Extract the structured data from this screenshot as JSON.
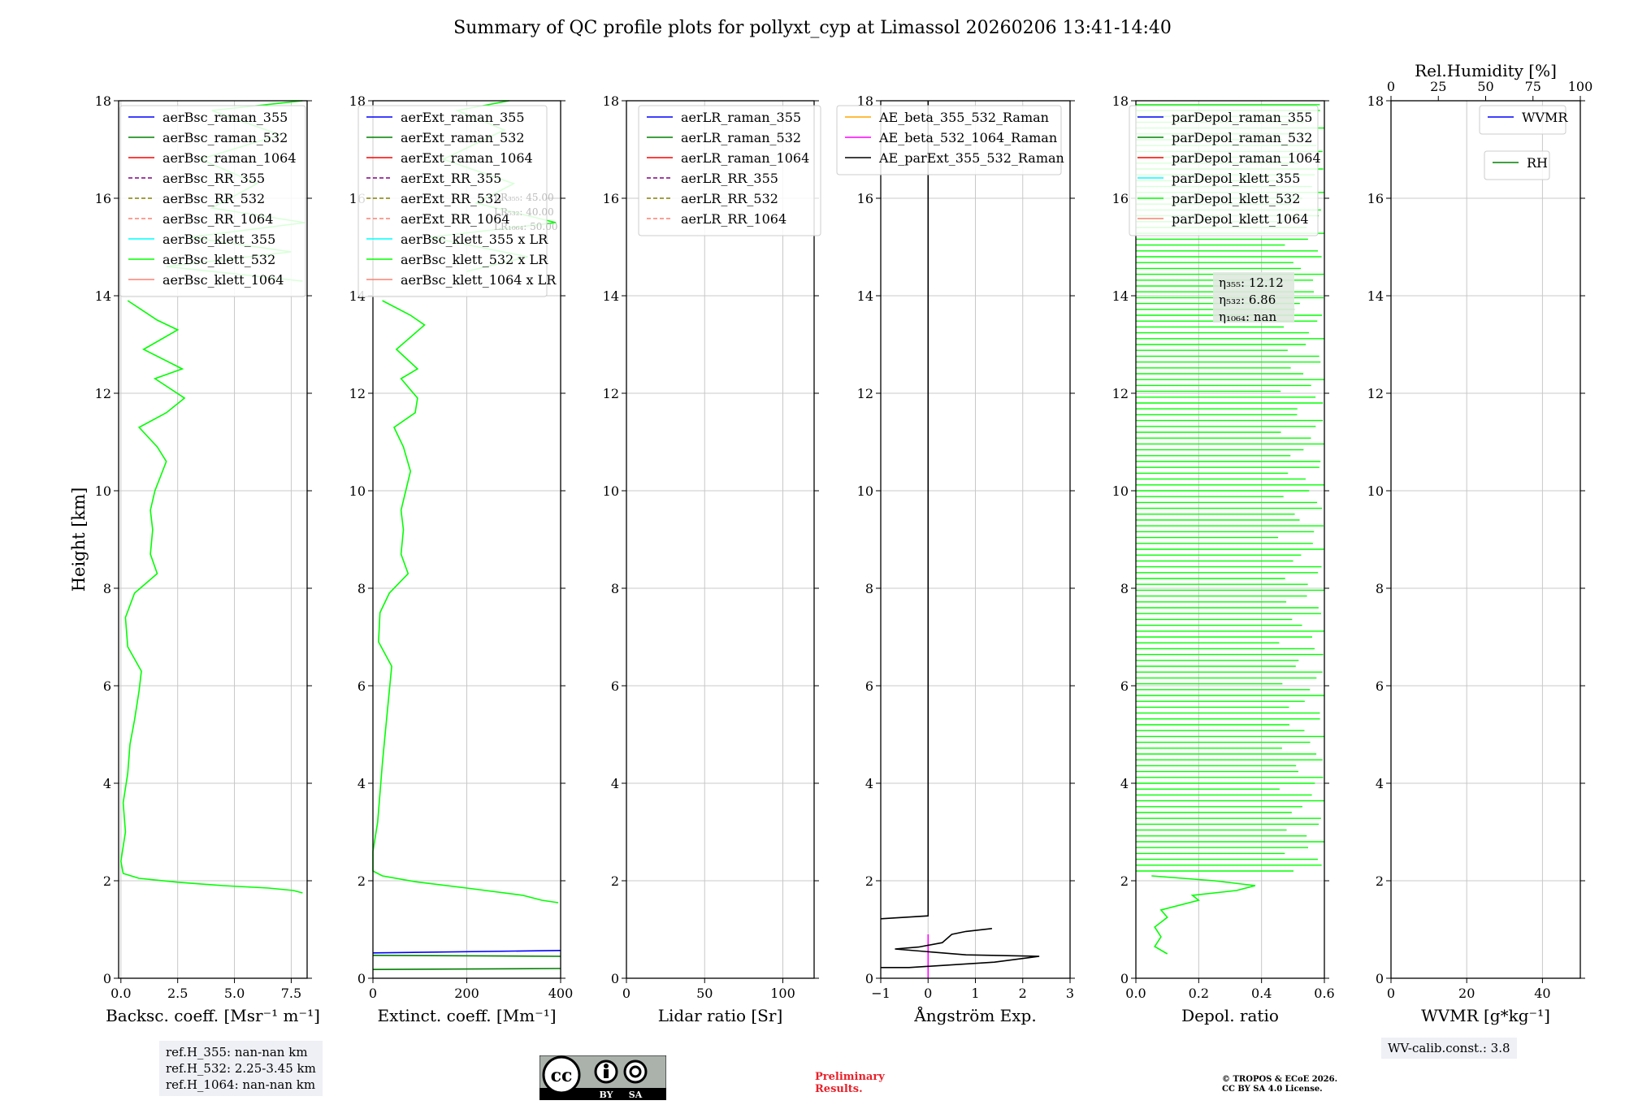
{
  "title": "Summary of QC profile plots for pollyxt_cyp at Limassol 20260206 13:41-14:40",
  "y_label": "Height [km]",
  "y_ticks": [
    "0",
    "2",
    "4",
    "6",
    "8",
    "10",
    "12",
    "14",
    "16",
    "18"
  ],
  "colors": {
    "raman355": "#0000ff",
    "raman532": "#008000",
    "raman1064": "#ff0000",
    "rr355": "#800080",
    "rr532": "#808000",
    "rr1064": "#fa8072",
    "klett355": "#00ffff",
    "klett532": "#00ff00",
    "klett1064": "#fa8072",
    "ae1": "#ffa500",
    "ae2": "#ff00ff",
    "ae3": "#000000"
  },
  "chart_data": [
    {
      "type": "line",
      "id": "bsc",
      "xlabel": "Backsc. coeff. [Msr⁻¹ m⁻¹]",
      "xlim": [
        -0.1,
        8.2
      ],
      "ylim": [
        0,
        18
      ],
      "x_ticks": [
        {
          "v": 0,
          "t": "0.0"
        },
        {
          "v": 2.5,
          "t": "2.5"
        },
        {
          "v": 5,
          "t": "5.0"
        },
        {
          "v": 7.5,
          "t": "7.5"
        }
      ],
      "legend": [
        {
          "label": "aerBsc_raman_355",
          "color": "raman355",
          "dash": false
        },
        {
          "label": "aerBsc_raman_532",
          "color": "raman532",
          "dash": false
        },
        {
          "label": "aerBsc_raman_1064",
          "color": "raman1064",
          "dash": false
        },
        {
          "label": "aerBsc_RR_355",
          "color": "rr355",
          "dash": true
        },
        {
          "label": "aerBsc_RR_532",
          "color": "rr532",
          "dash": true
        },
        {
          "label": "aerBsc_RR_1064",
          "color": "rr1064",
          "dash": true
        },
        {
          "label": "aerBsc_klett_355",
          "color": "klett355",
          "dash": false
        },
        {
          "label": "aerBsc_klett_532",
          "color": "klett532",
          "dash": false
        },
        {
          "label": "aerBsc_klett_1064",
          "color": "klett1064",
          "dash": false
        }
      ],
      "series": [
        {
          "name": "aerBsc_klett_532",
          "color": "klett532",
          "points": [
            [
              8.0,
              1.75
            ],
            [
              7.6,
              1.8
            ],
            [
              6.5,
              1.85
            ],
            [
              4.5,
              1.9
            ],
            [
              2.5,
              1.97
            ],
            [
              0.8,
              2.05
            ],
            [
              0.1,
              2.15
            ],
            [
              0.0,
              2.4
            ],
            [
              0.2,
              3.0
            ],
            [
              0.1,
              3.6
            ],
            [
              0.3,
              4.2
            ],
            [
              0.4,
              4.8
            ],
            [
              0.6,
              5.3
            ],
            [
              0.8,
              5.9
            ],
            [
              0.9,
              6.3
            ],
            [
              0.3,
              6.8
            ],
            [
              0.2,
              7.4
            ],
            [
              0.6,
              7.9
            ],
            [
              1.6,
              8.3
            ],
            [
              1.3,
              8.7
            ],
            [
              1.4,
              9.2
            ],
            [
              1.3,
              9.6
            ],
            [
              1.5,
              10.0
            ],
            [
              2.0,
              10.6
            ],
            [
              1.6,
              10.9
            ],
            [
              0.8,
              11.3
            ],
            [
              2.0,
              11.6
            ],
            [
              2.8,
              11.9
            ],
            [
              1.5,
              12.3
            ],
            [
              2.7,
              12.5
            ],
            [
              1.0,
              12.9
            ],
            [
              2.5,
              13.3
            ],
            [
              1.6,
              13.5
            ],
            [
              0.3,
              13.9
            ]
          ]
        },
        {
          "name": "aerBsc_klett_532_upper",
          "color": "klett532",
          "points": [
            [
              8.0,
              14.3
            ],
            [
              2.0,
              14.6
            ],
            [
              7.5,
              14.9
            ],
            [
              3.0,
              15.2
            ],
            [
              8.1,
              15.5
            ],
            [
              4.0,
              15.8
            ],
            [
              6.0,
              16.3
            ],
            [
              3.5,
              16.8
            ],
            [
              7.0,
              17.3
            ],
            [
              4.0,
              17.8
            ],
            [
              8.0,
              18.0
            ]
          ]
        }
      ]
    },
    {
      "type": "line",
      "id": "ext",
      "xlabel": "Extinct. coeff. [Mm⁻¹]",
      "xlim": [
        0,
        400
      ],
      "ylim": [
        0,
        18
      ],
      "x_ticks": [
        {
          "v": 0,
          "t": "0"
        },
        {
          "v": 200,
          "t": "200"
        },
        {
          "v": 400,
          "t": "400"
        }
      ],
      "legend": [
        {
          "label": "aerExt_raman_355",
          "color": "raman355",
          "dash": false
        },
        {
          "label": "aerExt_raman_532",
          "color": "raman532",
          "dash": false
        },
        {
          "label": "aerExt_raman_1064",
          "color": "raman1064",
          "dash": false
        },
        {
          "label": "aerExt_RR_355",
          "color": "rr355",
          "dash": true
        },
        {
          "label": "aerExt_RR_532",
          "color": "rr532",
          "dash": true
        },
        {
          "label": "aerExt_RR_1064",
          "color": "rr1064",
          "dash": true
        },
        {
          "label": "aerBsc_klett_355 x LR",
          "color": "klett355",
          "dash": false
        },
        {
          "label": "aerBsc_klett_532 x LR",
          "color": "klett532",
          "dash": false
        },
        {
          "label": "aerBsc_klett_1064 x LR",
          "color": "klett1064",
          "dash": false
        }
      ],
      "lr_notes": [
        "LR₃₅₅: 45.00",
        "LR₅₃₂: 40.00",
        "LR₁₀₆₄: 50.00"
      ],
      "series": [
        {
          "name": "aerBsc_klett_532 x LR",
          "color": "klett532",
          "points": [
            [
              395,
              1.55
            ],
            [
              360,
              1.6
            ],
            [
              320,
              1.7
            ],
            [
              200,
              1.85
            ],
            [
              90,
              1.98
            ],
            [
              20,
              2.1
            ],
            [
              0,
              2.2
            ],
            [
              0,
              2.6
            ],
            [
              10,
              3.2
            ],
            [
              15,
              3.8
            ],
            [
              20,
              4.4
            ],
            [
              25,
              4.9
            ],
            [
              30,
              5.4
            ],
            [
              35,
              5.9
            ],
            [
              40,
              6.4
            ],
            [
              12,
              6.9
            ],
            [
              15,
              7.5
            ],
            [
              35,
              7.9
            ],
            [
              75,
              8.3
            ],
            [
              60,
              8.7
            ],
            [
              65,
              9.2
            ],
            [
              60,
              9.6
            ],
            [
              70,
              10.0
            ],
            [
              80,
              10.4
            ],
            [
              65,
              10.9
            ],
            [
              45,
              11.3
            ],
            [
              90,
              11.6
            ],
            [
              95,
              11.9
            ],
            [
              60,
              12.3
            ],
            [
              95,
              12.5
            ],
            [
              50,
              12.9
            ],
            [
              110,
              13.4
            ],
            [
              80,
              13.6
            ],
            [
              20,
              13.9
            ]
          ]
        },
        {
          "name": "aerBsc_klett_532 x LR upper",
          "color": "klett532",
          "points": [
            [
              200,
              14.5
            ],
            [
              330,
              14.8
            ],
            [
              120,
              15.2
            ],
            [
              390,
              15.5
            ],
            [
              220,
              15.9
            ],
            [
              300,
              16.3
            ],
            [
              150,
              16.8
            ],
            [
              280,
              17.4
            ],
            [
              180,
              17.8
            ],
            [
              290,
              18.0
            ]
          ]
        },
        {
          "name": "aerExt_raman_355",
          "color": "raman355",
          "points": [
            [
              0,
              0.52
            ],
            [
              400,
              0.57
            ]
          ]
        },
        {
          "name": "aerExt_raman_532",
          "color": "raman532",
          "points": [
            [
              0,
              0.47
            ],
            [
              400,
              0.45
            ]
          ]
        },
        {
          "name": "aerExt_raman_532_b",
          "color": "raman532",
          "points": [
            [
              0,
              0.18
            ],
            [
              400,
              0.2
            ]
          ]
        }
      ]
    },
    {
      "type": "line",
      "id": "lr",
      "xlabel": "Lidar ratio [Sr]",
      "xlim": [
        0,
        120
      ],
      "ylim": [
        0,
        18
      ],
      "x_ticks": [
        {
          "v": 0,
          "t": "0"
        },
        {
          "v": 50,
          "t": "50"
        },
        {
          "v": 100,
          "t": "100"
        }
      ],
      "legend": [
        {
          "label": "aerLR_raman_355",
          "color": "raman355",
          "dash": false
        },
        {
          "label": "aerLR_raman_532",
          "color": "raman532",
          "dash": false
        },
        {
          "label": "aerLR_raman_1064",
          "color": "raman1064",
          "dash": false
        },
        {
          "label": "aerLR_RR_355",
          "color": "rr355",
          "dash": true
        },
        {
          "label": "aerLR_RR_532",
          "color": "rr532",
          "dash": true
        },
        {
          "label": "aerLR_RR_1064",
          "color": "rr1064",
          "dash": true
        }
      ],
      "series": []
    },
    {
      "type": "line",
      "id": "ae",
      "xlabel": "Ångström Exp.",
      "xlim": [
        -1,
        3
      ],
      "ylim": [
        0,
        18
      ],
      "x_ticks": [
        {
          "v": -1,
          "t": "−1"
        },
        {
          "v": 0,
          "t": "0"
        },
        {
          "v": 1,
          "t": "1"
        },
        {
          "v": 2,
          "t": "2"
        },
        {
          "v": 3,
          "t": "3"
        }
      ],
      "legend": [
        {
          "label": "AE_beta_355_532_Raman",
          "color": "ae1",
          "dash": false
        },
        {
          "label": "AE_beta_532_1064_Raman",
          "color": "ae2",
          "dash": false
        },
        {
          "label": "AE_parExt_355_532_Raman",
          "color": "ae3",
          "dash": false
        }
      ],
      "series": [
        {
          "name": "AE_beta_532_1064_Raman",
          "color": "ae2",
          "points": [
            [
              0,
              0
            ],
            [
              0,
              0.9
            ]
          ]
        },
        {
          "name": "AE_parExt_355_532_Raman",
          "color": "ae3",
          "points": [
            [
              -1,
              0.22
            ],
            [
              -0.4,
              0.22
            ],
            [
              1.4,
              0.33
            ],
            [
              2.35,
              0.45
            ],
            [
              0.8,
              0.48
            ],
            [
              -0.7,
              0.6
            ],
            [
              -0.2,
              0.64
            ],
            [
              0.3,
              0.73
            ],
            [
              0.5,
              0.9
            ],
            [
              0.8,
              0.96
            ],
            [
              1.35,
              1.02
            ]
          ]
        },
        {
          "name": "AE_parExt_355_532_Raman_b",
          "color": "ae3",
          "points": [
            [
              -1,
              1.22
            ],
            [
              0,
              1.28
            ],
            [
              0,
              18
            ]
          ]
        }
      ]
    },
    {
      "type": "line",
      "id": "depol",
      "xlabel": "Depol. ratio",
      "xlim": [
        0,
        0.6
      ],
      "ylim": [
        0,
        18
      ],
      "x_ticks": [
        {
          "v": 0,
          "t": "0.0"
        },
        {
          "v": 0.2,
          "t": "0.2"
        },
        {
          "v": 0.4,
          "t": "0.4"
        },
        {
          "v": 0.6,
          "t": "0.6"
        }
      ],
      "legend": [
        {
          "label": "parDepol_raman_355",
          "color": "raman355",
          "dash": false
        },
        {
          "label": "parDepol_raman_532",
          "color": "raman532",
          "dash": false
        },
        {
          "label": "parDepol_raman_1064",
          "color": "raman1064",
          "dash": false
        },
        {
          "label": "parDepol_klett_355",
          "color": "klett355",
          "dash": false
        },
        {
          "label": "parDepol_klett_532",
          "color": "klett532",
          "dash": false
        },
        {
          "label": "parDepol_klett_1064",
          "color": "klett1064",
          "dash": false
        }
      ],
      "eta": [
        "η₃₅₅: 12.12",
        "η₅₃₂: 6.86",
        "η₁₀₆₄: nan"
      ],
      "series": [
        {
          "name": "parDepol_klett_532",
          "color": "klett532",
          "points": [
            [
              0.1,
              0.5
            ],
            [
              0.06,
              0.65
            ],
            [
              0.08,
              0.85
            ],
            [
              0.06,
              1.05
            ],
            [
              0.1,
              1.25
            ],
            [
              0.08,
              1.4
            ],
            [
              0.2,
              1.6
            ],
            [
              0.18,
              1.7
            ],
            [
              0.32,
              1.8
            ],
            [
              0.38,
              1.9
            ],
            [
              0.25,
              2.0
            ],
            [
              0.05,
              2.1
            ]
          ]
        }
      ]
    },
    {
      "type": "line",
      "id": "wv",
      "xlabel": "WVMR [g*kg⁻¹]",
      "xlim": [
        0,
        50
      ],
      "ylim": [
        0,
        18
      ],
      "x_ticks": [
        {
          "v": 0,
          "t": "0"
        },
        {
          "v": 20,
          "t": "20"
        },
        {
          "v": 40,
          "t": "40"
        }
      ],
      "top_label": "Rel.Humidity [%]",
      "top_ticks": [
        "0",
        "25",
        "50",
        "75",
        "100"
      ],
      "legend": [
        {
          "label": "WVMR",
          "color": "raman355",
          "dash": false
        }
      ],
      "legend2": [
        {
          "label": "RH",
          "color": "raman532",
          "dash": false
        }
      ],
      "series": []
    }
  ],
  "refbox": [
    "ref.H_355: nan-nan km",
    "ref.H_532: 2.25-3.45 km",
    "ref.H_1064: nan-nan km"
  ],
  "wv_calib": "WV-calib.const.: 3.8",
  "preliminary": [
    "Preliminary",
    "Results."
  ],
  "copyright": [
    "© TROPOS & ECoE 2026.",
    "CC BY SA 4.0 License."
  ],
  "cc_badge": [
    "BY",
    "SA"
  ]
}
